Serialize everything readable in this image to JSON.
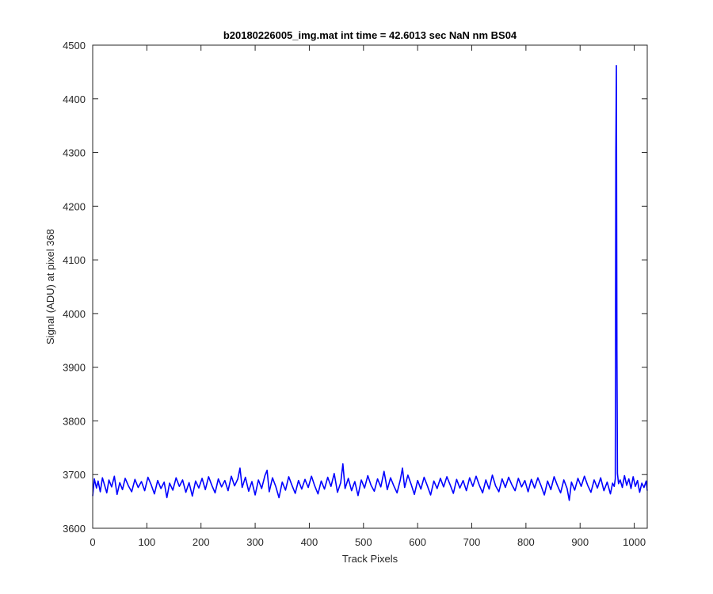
{
  "chart_data": {
    "type": "line",
    "title": "b20180226005_img.mat int time = 42.6013 sec  NaN nm BS04",
    "xlabel": "Track Pixels",
    "ylabel": "Signal (ADU) at pixel 368",
    "xlim": [
      0,
      1024
    ],
    "ylim": [
      3600,
      4500
    ],
    "xticks": [
      0,
      100,
      200,
      300,
      400,
      500,
      600,
      700,
      800,
      900,
      1000
    ],
    "yticks": [
      3600,
      3700,
      3800,
      3900,
      4000,
      4100,
      4200,
      4300,
      4400,
      4500
    ],
    "grid": false,
    "baseline_mean": 3683,
    "noise_range": [
      3652,
      3720
    ],
    "series": [
      {
        "color": "#0000ff",
        "points": [
          [
            0,
            3660
          ],
          [
            3,
            3692
          ],
          [
            7,
            3675
          ],
          [
            10,
            3688
          ],
          [
            14,
            3668
          ],
          [
            18,
            3694
          ],
          [
            22,
            3680
          ],
          [
            26,
            3666
          ],
          [
            30,
            3690
          ],
          [
            35,
            3677
          ],
          [
            40,
            3697
          ],
          [
            45,
            3663
          ],
          [
            50,
            3685
          ],
          [
            55,
            3672
          ],
          [
            60,
            3693
          ],
          [
            66,
            3679
          ],
          [
            72,
            3668
          ],
          [
            78,
            3691
          ],
          [
            84,
            3676
          ],
          [
            90,
            3687
          ],
          [
            96,
            3670
          ],
          [
            102,
            3695
          ],
          [
            108,
            3681
          ],
          [
            114,
            3664
          ],
          [
            120,
            3689
          ],
          [
            126,
            3674
          ],
          [
            132,
            3686
          ],
          [
            137,
            3657
          ],
          [
            142,
            3684
          ],
          [
            148,
            3671
          ],
          [
            154,
            3694
          ],
          [
            160,
            3678
          ],
          [
            166,
            3690
          ],
          [
            172,
            3667
          ],
          [
            178,
            3685
          ],
          [
            184,
            3660
          ],
          [
            190,
            3688
          ],
          [
            196,
            3675
          ],
          [
            202,
            3693
          ],
          [
            208,
            3672
          ],
          [
            214,
            3696
          ],
          [
            220,
            3680
          ],
          [
            226,
            3666
          ],
          [
            232,
            3692
          ],
          [
            238,
            3677
          ],
          [
            244,
            3689
          ],
          [
            250,
            3670
          ],
          [
            256,
            3697
          ],
          [
            262,
            3679
          ],
          [
            268,
            3692
          ],
          [
            272,
            3712
          ],
          [
            276,
            3676
          ],
          [
            282,
            3695
          ],
          [
            288,
            3669
          ],
          [
            294,
            3687
          ],
          [
            300,
            3662
          ],
          [
            306,
            3690
          ],
          [
            312,
            3674
          ],
          [
            318,
            3698
          ],
          [
            322,
            3708
          ],
          [
            326,
            3668
          ],
          [
            332,
            3694
          ],
          [
            338,
            3678
          ],
          [
            344,
            3657
          ],
          [
            350,
            3686
          ],
          [
            356,
            3671
          ],
          [
            362,
            3696
          ],
          [
            368,
            3680
          ],
          [
            374,
            3665
          ],
          [
            380,
            3689
          ],
          [
            386,
            3673
          ],
          [
            392,
            3691
          ],
          [
            398,
            3676
          ],
          [
            404,
            3697
          ],
          [
            410,
            3679
          ],
          [
            416,
            3664
          ],
          [
            422,
            3688
          ],
          [
            428,
            3673
          ],
          [
            434,
            3695
          ],
          [
            440,
            3678
          ],
          [
            446,
            3702
          ],
          [
            452,
            3667
          ],
          [
            458,
            3685
          ],
          [
            462,
            3720
          ],
          [
            466,
            3674
          ],
          [
            472,
            3693
          ],
          [
            478,
            3670
          ],
          [
            484,
            3687
          ],
          [
            490,
            3661
          ],
          [
            496,
            3690
          ],
          [
            502,
            3675
          ],
          [
            508,
            3698
          ],
          [
            514,
            3680
          ],
          [
            520,
            3669
          ],
          [
            526,
            3692
          ],
          [
            532,
            3677
          ],
          [
            538,
            3706
          ],
          [
            544,
            3672
          ],
          [
            550,
            3694
          ],
          [
            556,
            3679
          ],
          [
            562,
            3666
          ],
          [
            568,
            3690
          ],
          [
            572,
            3712
          ],
          [
            576,
            3676
          ],
          [
            582,
            3699
          ],
          [
            588,
            3682
          ],
          [
            594,
            3663
          ],
          [
            600,
            3689
          ],
          [
            606,
            3673
          ],
          [
            612,
            3695
          ],
          [
            618,
            3679
          ],
          [
            624,
            3662
          ],
          [
            630,
            3688
          ],
          [
            636,
            3674
          ],
          [
            642,
            3693
          ],
          [
            648,
            3677
          ],
          [
            654,
            3696
          ],
          [
            660,
            3681
          ],
          [
            666,
            3665
          ],
          [
            672,
            3691
          ],
          [
            678,
            3675
          ],
          [
            684,
            3689
          ],
          [
            690,
            3670
          ],
          [
            696,
            3694
          ],
          [
            702,
            3678
          ],
          [
            708,
            3697
          ],
          [
            714,
            3680
          ],
          [
            720,
            3666
          ],
          [
            726,
            3690
          ],
          [
            732,
            3673
          ],
          [
            738,
            3699
          ],
          [
            744,
            3679
          ],
          [
            750,
            3668
          ],
          [
            756,
            3692
          ],
          [
            762,
            3676
          ],
          [
            768,
            3695
          ],
          [
            774,
            3681
          ],
          [
            780,
            3670
          ],
          [
            786,
            3693
          ],
          [
            792,
            3677
          ],
          [
            798,
            3689
          ],
          [
            804,
            3668
          ],
          [
            810,
            3691
          ],
          [
            816,
            3675
          ],
          [
            822,
            3694
          ],
          [
            828,
            3679
          ],
          [
            834,
            3662
          ],
          [
            840,
            3688
          ],
          [
            846,
            3672
          ],
          [
            852,
            3696
          ],
          [
            858,
            3680
          ],
          [
            864,
            3666
          ],
          [
            870,
            3690
          ],
          [
            876,
            3674
          ],
          [
            880,
            3652
          ],
          [
            884,
            3686
          ],
          [
            890,
            3671
          ],
          [
            896,
            3693
          ],
          [
            902,
            3678
          ],
          [
            908,
            3697
          ],
          [
            914,
            3680
          ],
          [
            920,
            3667
          ],
          [
            926,
            3690
          ],
          [
            932,
            3675
          ],
          [
            938,
            3694
          ],
          [
            944,
            3670
          ],
          [
            950,
            3686
          ],
          [
            956,
            3664
          ],
          [
            960,
            3684
          ],
          [
            963,
            3678
          ],
          [
            965,
            3692
          ],
          [
            966,
            4300
          ],
          [
            967,
            4462
          ],
          [
            968,
            3930
          ],
          [
            969,
            3702
          ],
          [
            971,
            3683
          ],
          [
            974,
            3690
          ],
          [
            978,
            3676
          ],
          [
            982,
            3698
          ],
          [
            986,
            3680
          ],
          [
            990,
            3692
          ],
          [
            994,
            3674
          ],
          [
            998,
            3696
          ],
          [
            1002,
            3678
          ],
          [
            1006,
            3689
          ],
          [
            1010,
            3667
          ],
          [
            1014,
            3684
          ],
          [
            1018,
            3676
          ],
          [
            1022,
            3688
          ],
          [
            1024,
            3670
          ]
        ]
      }
    ]
  }
}
